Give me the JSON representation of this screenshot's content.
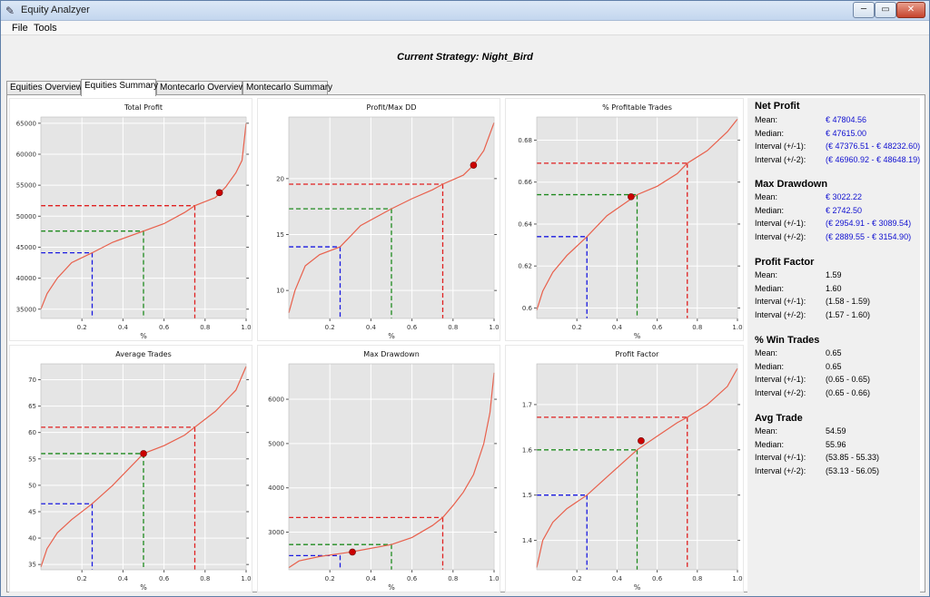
{
  "window": {
    "title": "Equity Analzyer",
    "min": "─",
    "max": "▭",
    "close": "✕"
  },
  "menu": {
    "file": "File",
    "tools": "Tools"
  },
  "strategy_line": "Current Strategy: Night_Bird",
  "tabs": [
    "Equities Overview",
    "Equities Summary",
    "Montecarlo Overview",
    "Montecarlo Summary"
  ],
  "active_tab": "Equities Summary",
  "colors": {
    "curve": "#e8604c",
    "q25": "#1a1ae0",
    "q50": "#1f8a1f",
    "q75": "#e02020",
    "point": "#cc0000",
    "plot_bg": "#e5e5e5"
  },
  "stats": {
    "labels": {
      "mean": "Mean:",
      "median": "Median:",
      "i1": "Interval (+/-1):",
      "i2": "Interval (+/-2):"
    },
    "net_profit": {
      "title": "Net Profit",
      "mean": "€ 47804.56",
      "median": "€ 47615.00",
      "i1": "(€ 47376.51 - € 48232.60)",
      "i2": "(€ 46960.92 - € 48648.19)"
    },
    "max_drawdown": {
      "title": "Max Drawdown",
      "mean": "€ 3022.22",
      "median": "€ 2742.50",
      "i1": "(€ 2954.91 - € 3089.54)",
      "i2": "(€ 2889.55 - € 3154.90)"
    },
    "profit_factor": {
      "title": "Profit Factor",
      "mean": "1.59",
      "median": "1.60",
      "i1": "(1.58 - 1.59)",
      "i2": "(1.57 - 1.60)"
    },
    "win_trades": {
      "title": "% Win Trades",
      "mean": "0.65",
      "median": "0.65",
      "i1": "(0.65 - 0.65)",
      "i2": "(0.65 - 0.66)"
    },
    "avg_trade": {
      "title": "Avg Trade",
      "mean": "54.59",
      "median": "55.96",
      "i1": "(53.85 - 55.33)",
      "i2": "(53.13 - 56.05)"
    }
  },
  "chart_data": [
    {
      "type": "line",
      "title": "Total Profit",
      "xlabel": "%",
      "ylabel": "",
      "xlim": [
        0,
        1
      ],
      "ylim": [
        33500,
        66000
      ],
      "xticks": [
        "0.2",
        "0.4",
        "0.6",
        "0.8",
        "1.0"
      ],
      "yticks": [
        35000,
        40000,
        45000,
        50000,
        55000,
        60000,
        65000
      ],
      "curve": [
        [
          0,
          35000
        ],
        [
          0.03,
          37500
        ],
        [
          0.08,
          40000
        ],
        [
          0.15,
          42500
        ],
        [
          0.25,
          44100
        ],
        [
          0.35,
          45800
        ],
        [
          0.5,
          47600
        ],
        [
          0.6,
          48800
        ],
        [
          0.7,
          50600
        ],
        [
          0.75,
          51700
        ],
        [
          0.85,
          53000
        ],
        [
          0.9,
          54700
        ],
        [
          0.95,
          57000
        ],
        [
          0.98,
          59000
        ],
        [
          1.0,
          65000
        ]
      ],
      "quantiles": [
        [
          0.25,
          44100
        ],
        [
          0.5,
          47600
        ],
        [
          0.75,
          51700
        ]
      ],
      "point": [
        0.87,
        53800
      ]
    },
    {
      "type": "line",
      "title": "Profit/Max DD",
      "xlabel": "%",
      "ylabel": "",
      "xlim": [
        0,
        1
      ],
      "ylim": [
        7.5,
        25.5
      ],
      "xticks": [
        "0.2",
        "0.4",
        "0.6",
        "0.8",
        "1.0"
      ],
      "yticks": [
        10,
        15,
        20
      ],
      "curve": [
        [
          0,
          8
        ],
        [
          0.03,
          10
        ],
        [
          0.08,
          12.2
        ],
        [
          0.15,
          13.2
        ],
        [
          0.25,
          13.9
        ],
        [
          0.35,
          15.8
        ],
        [
          0.5,
          17.3
        ],
        [
          0.6,
          18.2
        ],
        [
          0.7,
          19
        ],
        [
          0.75,
          19.5
        ],
        [
          0.85,
          20.3
        ],
        [
          0.9,
          21.2
        ],
        [
          0.95,
          22.5
        ],
        [
          1.0,
          25
        ]
      ],
      "quantiles": [
        [
          0.25,
          13.9
        ],
        [
          0.5,
          17.3
        ],
        [
          0.75,
          19.5
        ]
      ],
      "point": [
        0.9,
        21.2
      ]
    },
    {
      "type": "line",
      "title": "% Profitable Trades",
      "xlabel": "%",
      "ylabel": "",
      "xlim": [
        0,
        1
      ],
      "ylim": [
        0.595,
        0.691
      ],
      "xticks": [
        "0.2",
        "0.4",
        "0.6",
        "0.8",
        "1.0"
      ],
      "yticks": [
        0.6,
        0.62,
        0.64,
        0.66,
        0.68
      ],
      "curve": [
        [
          0,
          0.599
        ],
        [
          0.03,
          0.608
        ],
        [
          0.08,
          0.617
        ],
        [
          0.15,
          0.625
        ],
        [
          0.25,
          0.634
        ],
        [
          0.35,
          0.644
        ],
        [
          0.5,
          0.654
        ],
        [
          0.6,
          0.658
        ],
        [
          0.7,
          0.664
        ],
        [
          0.75,
          0.669
        ],
        [
          0.85,
          0.675
        ],
        [
          0.95,
          0.684
        ],
        [
          1.0,
          0.69
        ]
      ],
      "quantiles": [
        [
          0.25,
          0.634
        ],
        [
          0.5,
          0.654
        ],
        [
          0.75,
          0.669
        ]
      ],
      "point": [
        0.47,
        0.653
      ]
    },
    {
      "type": "line",
      "title": "Average Trades",
      "xlabel": "%",
      "ylabel": "",
      "xlim": [
        0,
        1
      ],
      "ylim": [
        34,
        73
      ],
      "xticks": [
        "0.2",
        "0.4",
        "0.6",
        "0.8",
        "1.0"
      ],
      "yticks": [
        35,
        40,
        45,
        50,
        55,
        60,
        65,
        70
      ],
      "curve": [
        [
          0,
          34.5
        ],
        [
          0.03,
          38
        ],
        [
          0.08,
          41
        ],
        [
          0.15,
          43.5
        ],
        [
          0.25,
          46.5
        ],
        [
          0.35,
          50
        ],
        [
          0.5,
          56
        ],
        [
          0.6,
          57.5
        ],
        [
          0.7,
          59.5
        ],
        [
          0.75,
          61
        ],
        [
          0.85,
          64
        ],
        [
          0.95,
          68
        ],
        [
          1.0,
          72.5
        ]
      ],
      "quantiles": [
        [
          0.25,
          46.5
        ],
        [
          0.5,
          56
        ],
        [
          0.75,
          61
        ]
      ],
      "point": [
        0.5,
        56
      ]
    },
    {
      "type": "line",
      "title": "Max Drawdown",
      "xlabel": "%",
      "ylabel": "",
      "xlim": [
        0,
        1
      ],
      "ylim": [
        2150,
        6800
      ],
      "xticks": [
        "0.2",
        "0.4",
        "0.6",
        "0.8",
        "1.0"
      ],
      "yticks": [
        3000,
        4000,
        5000,
        6000
      ],
      "curve": [
        [
          0,
          2200
        ],
        [
          0.05,
          2350
        ],
        [
          0.15,
          2450
        ],
        [
          0.3,
          2550
        ],
        [
          0.5,
          2720
        ],
        [
          0.6,
          2880
        ],
        [
          0.7,
          3150
        ],
        [
          0.75,
          3330
        ],
        [
          0.8,
          3600
        ],
        [
          0.85,
          3900
        ],
        [
          0.9,
          4300
        ],
        [
          0.95,
          5000
        ],
        [
          0.98,
          5700
        ],
        [
          1.0,
          6600
        ]
      ],
      "quantiles": [
        [
          0.25,
          2470
        ],
        [
          0.5,
          2720
        ],
        [
          0.75,
          3330
        ]
      ],
      "point": [
        0.31,
        2550
      ]
    },
    {
      "type": "line",
      "title": "Profit Factor",
      "xlabel": "%",
      "ylabel": "",
      "xlim": [
        0,
        1
      ],
      "ylim": [
        1.335,
        1.79
      ],
      "xticks": [
        "0.2",
        "0.4",
        "0.6",
        "0.8",
        "1.0"
      ],
      "yticks": [
        1.4,
        1.5,
        1.6,
        1.7
      ],
      "curve": [
        [
          0,
          1.34
        ],
        [
          0.03,
          1.4
        ],
        [
          0.08,
          1.44
        ],
        [
          0.15,
          1.47
        ],
        [
          0.25,
          1.5
        ],
        [
          0.35,
          1.54
        ],
        [
          0.5,
          1.6
        ],
        [
          0.6,
          1.63
        ],
        [
          0.7,
          1.66
        ],
        [
          0.75,
          1.672
        ],
        [
          0.85,
          1.7
        ],
        [
          0.95,
          1.74
        ],
        [
          1.0,
          1.78
        ]
      ],
      "quantiles": [
        [
          0.25,
          1.5
        ],
        [
          0.5,
          1.6
        ],
        [
          0.75,
          1.672
        ]
      ],
      "point": [
        0.52,
        1.62
      ]
    }
  ]
}
